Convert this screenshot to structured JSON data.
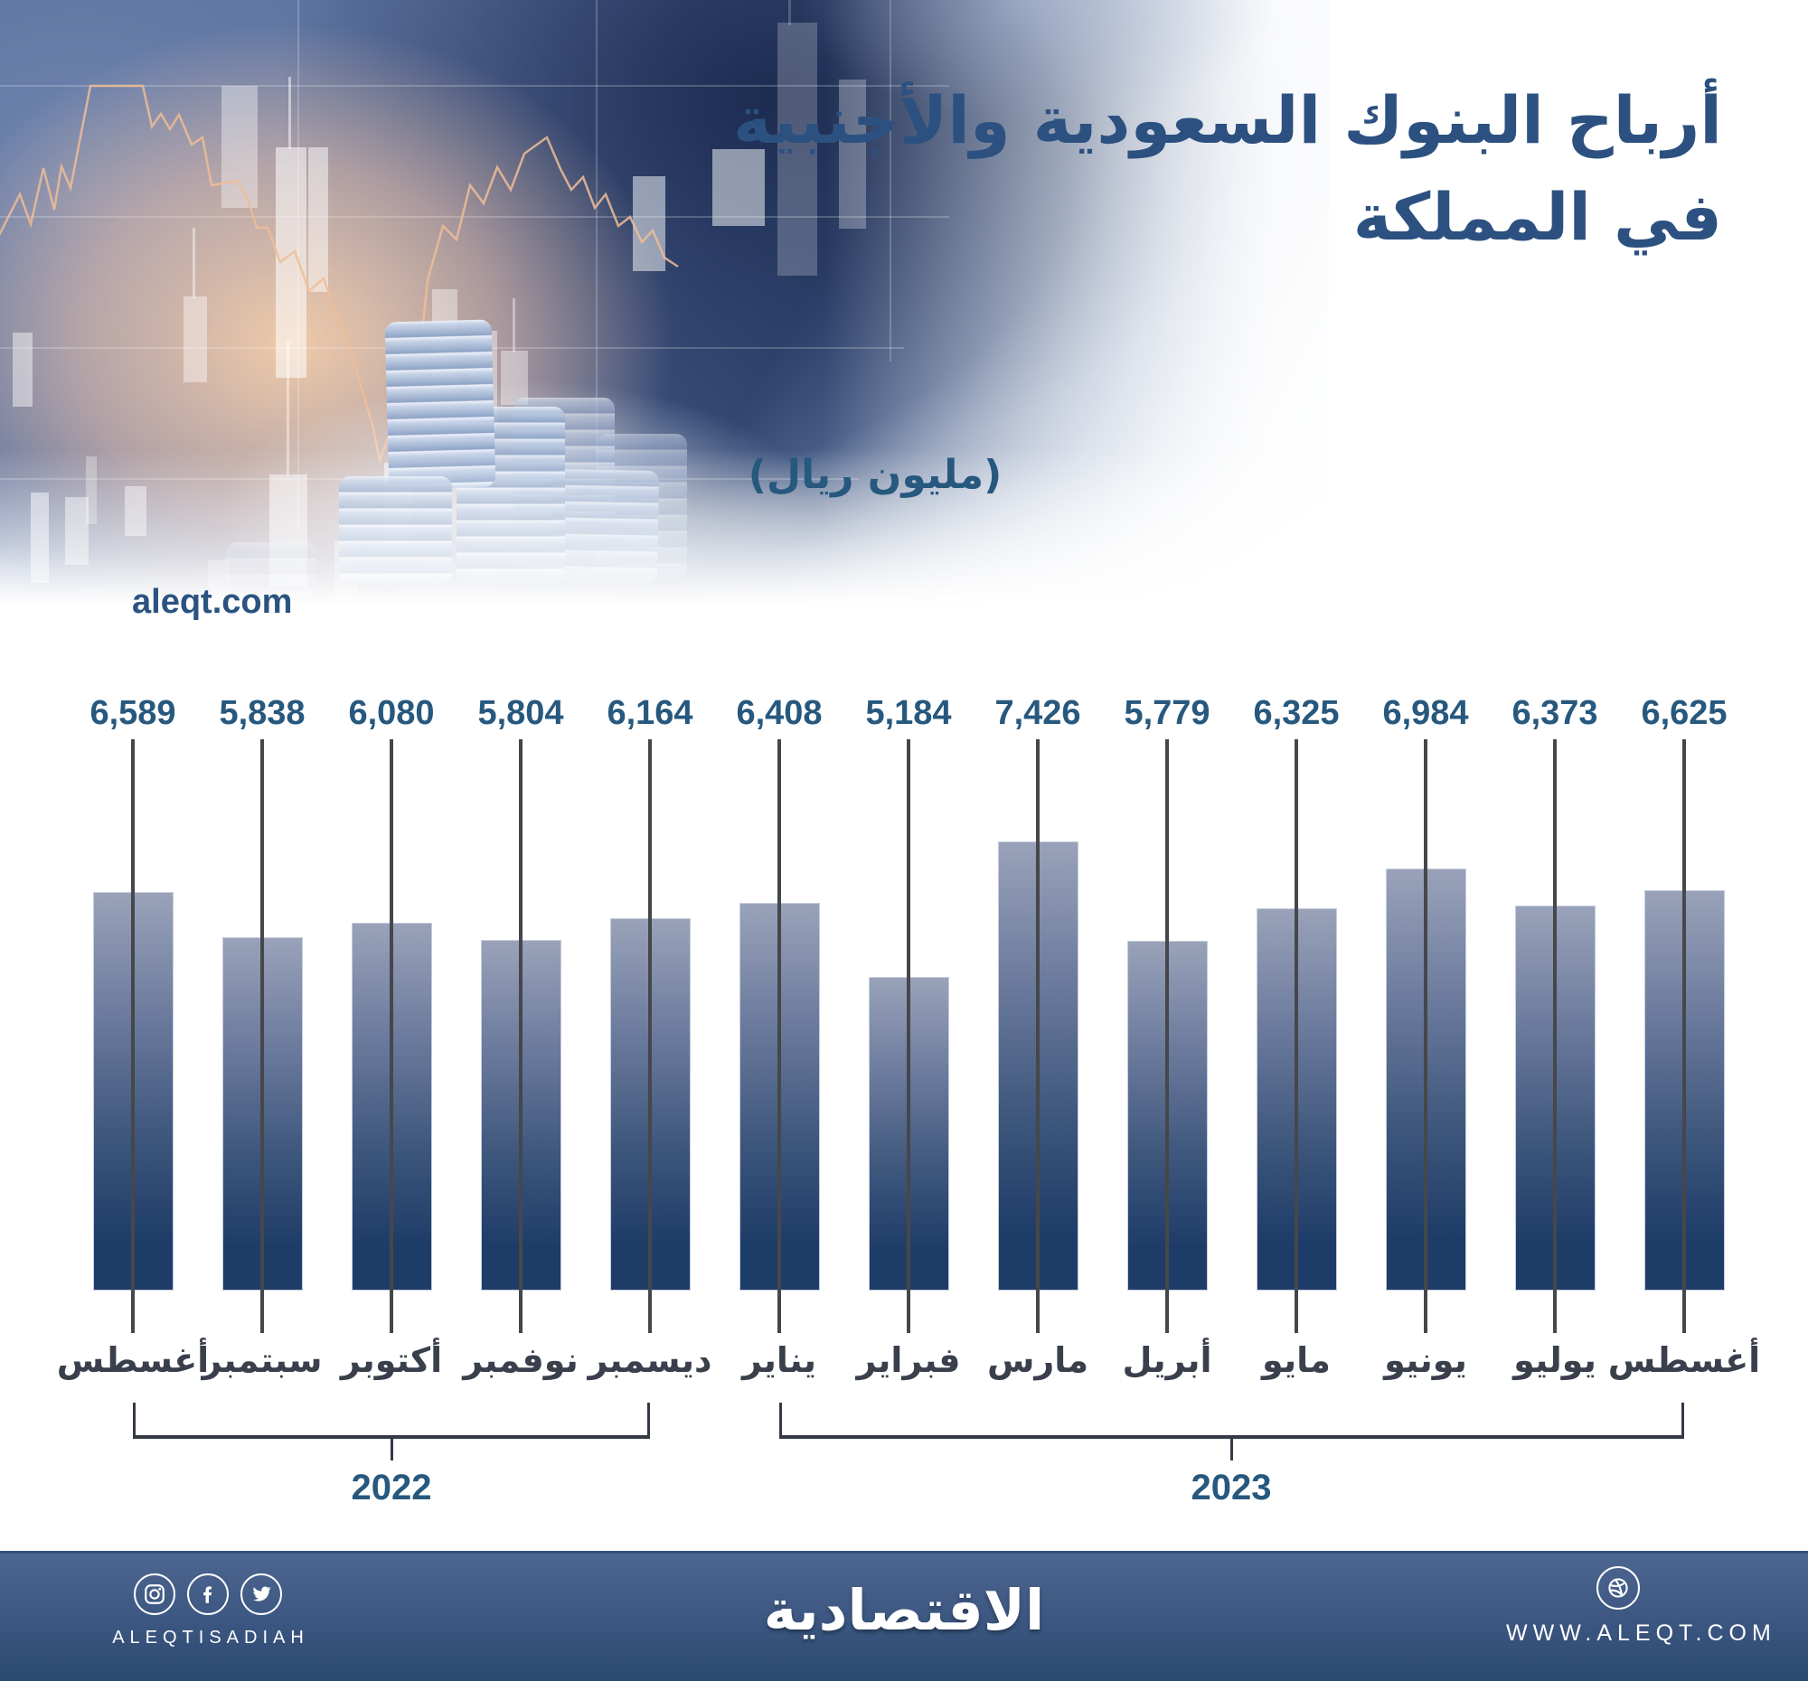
{
  "header": {
    "title_line1": "أرباح البنوك السعودية والأجنبية",
    "title_line2": "في المملكة",
    "unit_label": "(مليون ريال)",
    "watermark": "aleqt.com"
  },
  "chart_data": {
    "type": "bar",
    "title": "أرباح البنوك السعودية والأجنبية في المملكة",
    "unit": "مليون ريال",
    "categories": [
      "أغسطس",
      "سبتمبر",
      "أكتوبر",
      "نوفمبر",
      "ديسمبر",
      "يناير",
      "فبراير",
      "مارس",
      "أبريل",
      "مايو",
      "يونيو",
      "يوليو",
      "أغسطس"
    ],
    "values": [
      6589,
      5838,
      6080,
      5804,
      6164,
      6408,
      5184,
      7426,
      5779,
      6325,
      6984,
      6373,
      6625
    ],
    "value_labels": [
      "6,589",
      "5,838",
      "6,080",
      "5,804",
      "6,164",
      "6,408",
      "5,184",
      "7,426",
      "5,779",
      "6,325",
      "6,984",
      "6,373",
      "6,625"
    ],
    "year_groups": [
      {
        "label": "2022",
        "start_index": 0,
        "end_index": 4
      },
      {
        "label": "2023",
        "start_index": 5,
        "end_index": 12
      }
    ],
    "ylim": [
      0,
      7426
    ],
    "grid": false,
    "legend": "none",
    "bar_gradient_top": "#99a2b9",
    "bar_gradient_bottom": "#1e3c68"
  },
  "footer": {
    "social_icons": [
      "instagram-icon",
      "facebook-icon",
      "twitter-icon"
    ],
    "social_handle": "ALEQTISADIAH",
    "logo_text": "الاقتصادية",
    "website_icon": "dribbble-ball-icon",
    "website": "WWW.ALEQT.COM"
  },
  "colors": {
    "accent_blue": "#2c5180",
    "value_text": "#27587e",
    "month_text": "#3a3f4c",
    "axis_line": "#46474b",
    "bracket_line": "#343a46",
    "footer_top": "#4d6691",
    "footer_bottom": "#2b4971",
    "hero_line_orange": "#eebd97"
  }
}
